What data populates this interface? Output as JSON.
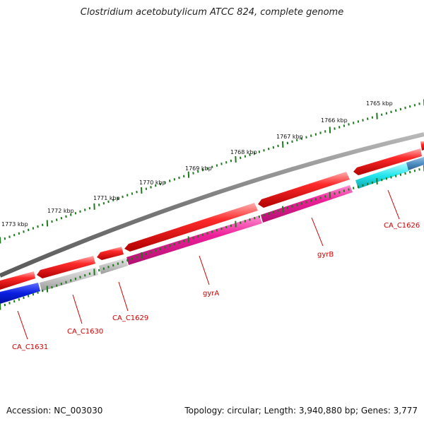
{
  "title": "Clostridium acetobutylicum ATCC 824, complete genome",
  "footer": {
    "accession": "Accession: NC_003030",
    "topology": "Topology: circular; Length: 3,940,880 bp; Genes: 3,777"
  },
  "ticks": [
    {
      "label": "1765 kbp"
    },
    {
      "label": "1766 kbp"
    },
    {
      "label": "1767 kbp"
    },
    {
      "label": "1768 kbp"
    },
    {
      "label": "1769 kbp"
    },
    {
      "label": "1770 kbp"
    },
    {
      "label": "1771 kbp"
    },
    {
      "label": "1772 kbp"
    },
    {
      "label": "1773 kbp"
    }
  ],
  "gene_labels": [
    {
      "name": "CA_C1626"
    },
    {
      "name": "gyrB"
    },
    {
      "name": "gyrA"
    },
    {
      "name": "CA_C1629"
    },
    {
      "name": "CA_C1630"
    },
    {
      "name": "CA_C1631"
    }
  ],
  "colors": {
    "cds": "#ee0000",
    "gyrA": "#ee1f99",
    "gyrB": "#ee1f99",
    "CA_C1626": "#22e5ec",
    "CA_C1626b": "#4f8fc4",
    "CA_C1629": "#c4c4c4",
    "CA_C1630": "#c4c4c4",
    "CA_C1631": "#0a1ee0",
    "backbone": "#808080",
    "tick": "#1f7a1f",
    "label": "#cc0000"
  }
}
